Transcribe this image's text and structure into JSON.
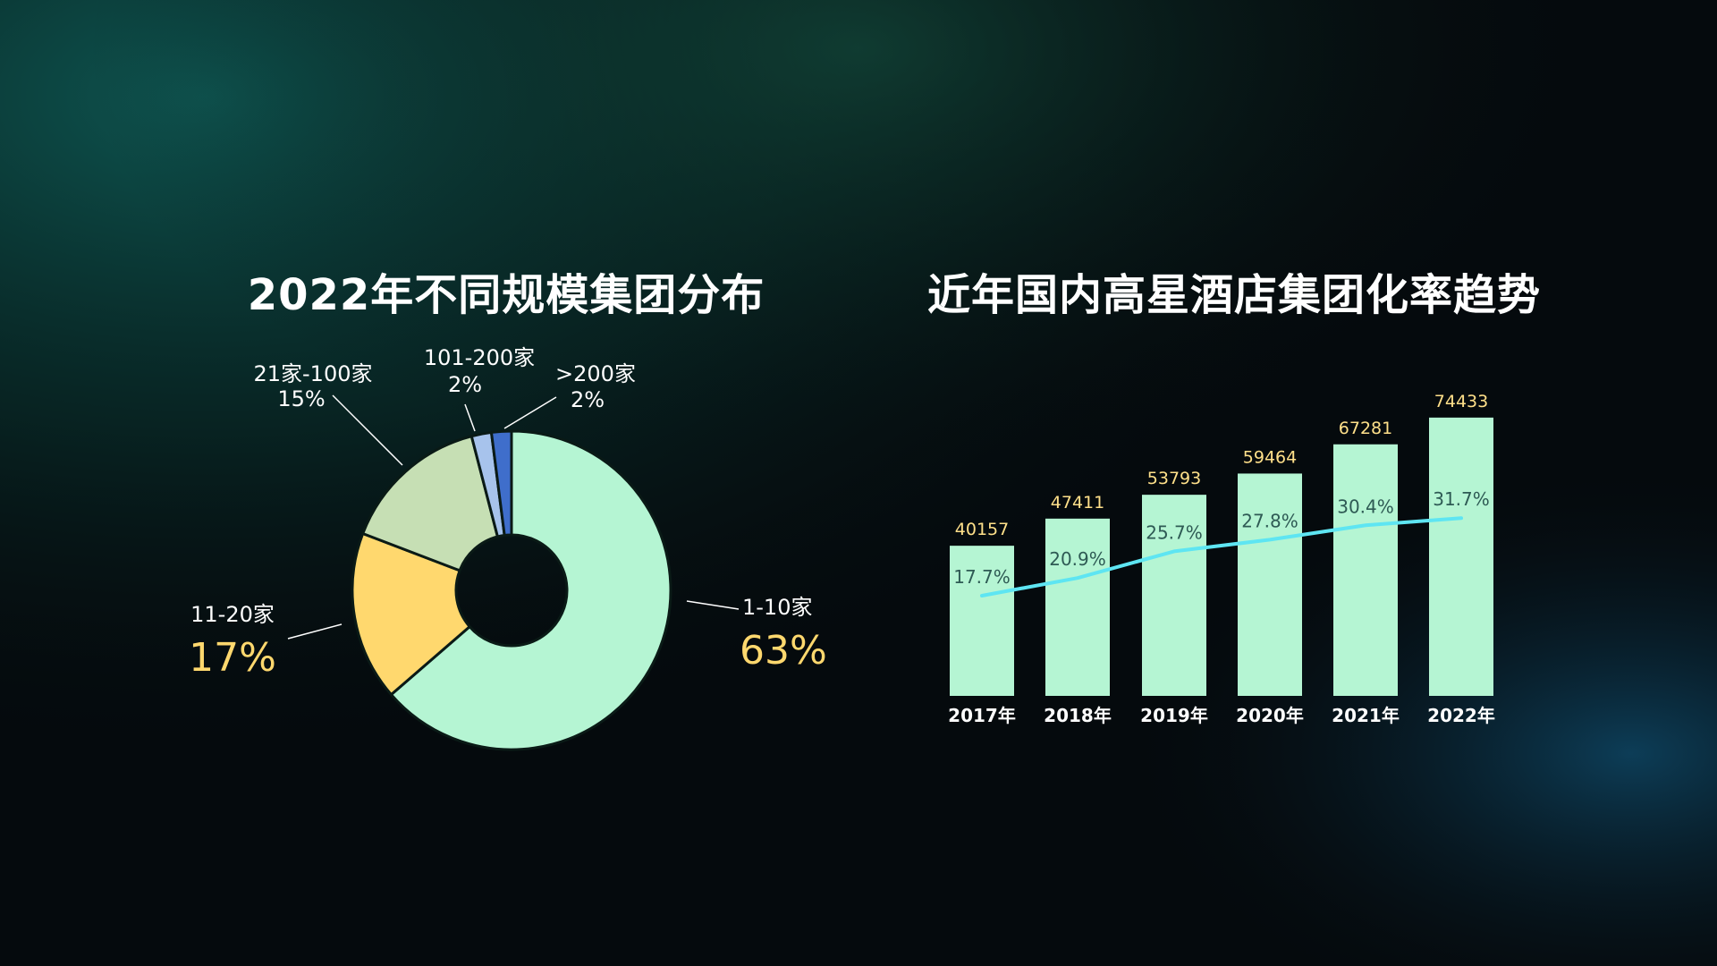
{
  "pie_title": "2022年不同规模集团分布",
  "bar_title": "近年国内高星酒店集团化率趋势",
  "chart_data": [
    {
      "type": "pie",
      "title": "2022年不同规模集团分布",
      "categories": [
        "1-10家",
        "11-20家",
        "21家-100家",
        "101-200家",
        ">200家"
      ],
      "values": [
        63,
        17,
        15,
        2,
        2
      ],
      "labels": [
        "63%",
        "17%",
        "15%",
        "2%",
        "2%"
      ],
      "colors": [
        "#b5f5d3",
        "#ffd86e",
        "#c6dfb4",
        "#a7c3ec",
        "#3f6ecb"
      ]
    },
    {
      "type": "bar",
      "title": "近年国内高星酒店集团化率趋势",
      "categories": [
        "2017年",
        "2018年",
        "2019年",
        "2020年",
        "2021年",
        "2022年"
      ],
      "series": [
        {
          "values": [
            40157,
            47411,
            53793,
            59464,
            67281,
            74433
          ],
          "labels": [
            "40157",
            "47411",
            "53793",
            "59464",
            "67281",
            "74433"
          ]
        },
        {
          "type": "line",
          "values": [
            17.7,
            20.9,
            25.7,
            27.8,
            30.4,
            31.7
          ],
          "labels": [
            "17.7%",
            "20.9%",
            "25.7%",
            "27.8%",
            "30.4%",
            "31.7%"
          ]
        }
      ],
      "colors": {
        "bar": "#b5f5d3",
        "line": "#5ee5f2",
        "value_label": "#ffe08a",
        "rate_label": "#2e5a54"
      }
    }
  ]
}
